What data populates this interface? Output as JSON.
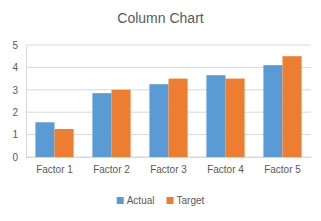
{
  "chart_data": {
    "type": "bar",
    "title": "Column Chart",
    "categories": [
      "Factor 1",
      "Factor 2",
      "Factor 3",
      "Factor 4",
      "Factor 5"
    ],
    "series": [
      {
        "name": "Actual",
        "color": "#5b9bd5",
        "values": [
          1.55,
          2.85,
          3.25,
          3.65,
          4.1
        ]
      },
      {
        "name": "Target",
        "color": "#ed7d31",
        "values": [
          1.25,
          3.0,
          3.5,
          3.5,
          4.5
        ]
      }
    ],
    "ylim": [
      0,
      5
    ],
    "yticks": [
      0,
      1,
      2,
      3,
      4,
      5
    ],
    "grid": true,
    "legend": "bottom"
  }
}
